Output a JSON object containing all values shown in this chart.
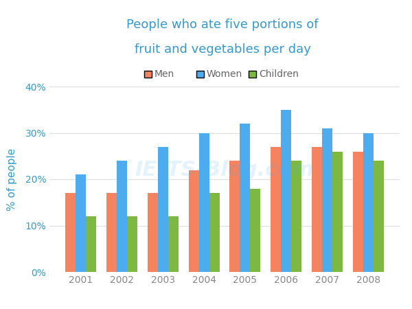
{
  "title_line1": "People who ate five portions of",
  "title_line2": "fruit and vegetables per day",
  "ylabel": "% of people",
  "years": [
    2001,
    2002,
    2003,
    2004,
    2005,
    2006,
    2007,
    2008
  ],
  "men": [
    17,
    17,
    17,
    22,
    24,
    27,
    27,
    26
  ],
  "women": [
    21,
    24,
    27,
    30,
    32,
    35,
    31,
    30
  ],
  "children": [
    12,
    12,
    12,
    17,
    18,
    24,
    26,
    24
  ],
  "men_color": "#F4845F",
  "women_color": "#4DACED",
  "children_color": "#7DB941",
  "title_color": "#3399CC",
  "axis_color": "#3399CC",
  "tick_color": "#3399CC",
  "xtick_color": "#888888",
  "ylim": [
    0,
    40
  ],
  "yticks": [
    0,
    10,
    20,
    30,
    40
  ],
  "ytick_labels": [
    "0%",
    "10%",
    "20%",
    "30%",
    "40%"
  ],
  "background_color": "#ffffff",
  "legend_labels": [
    "Men",
    "Women",
    "Children"
  ],
  "bar_width": 0.25,
  "grid_color": "#dddddd",
  "watermark": "IELTS-Blog.com"
}
